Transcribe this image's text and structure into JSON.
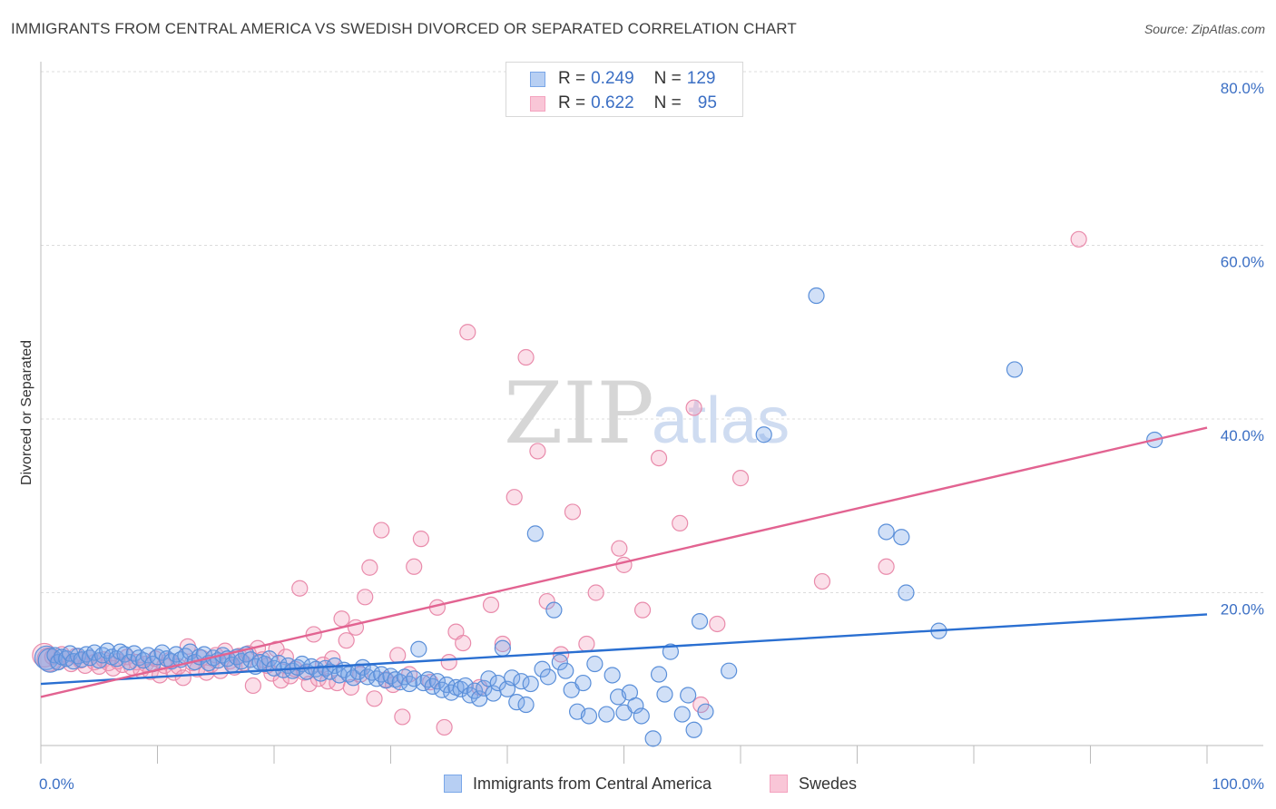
{
  "header": {
    "title": "IMMIGRANTS FROM CENTRAL AMERICA VS SWEDISH DIVORCED OR SEPARATED CORRELATION CHART",
    "source": "Source: ZipAtlas.com"
  },
  "watermark": {
    "zip": "ZIP",
    "atlas": "atlas"
  },
  "legend": {
    "rows": [
      {
        "r_label": "R = ",
        "r_value": "0.249",
        "n_label": "N = ",
        "n_value": "129"
      },
      {
        "r_label": "R = ",
        "r_value": "0.622",
        "n_label": "N = ",
        "n_value": "95"
      }
    ]
  },
  "chart_data": {
    "type": "scatter",
    "ylabel": "Divorced or Separated",
    "xlim": [
      0,
      100
    ],
    "ylim": [
      0,
      85
    ],
    "x_tick_labels": [
      "0.0%",
      "100.0%"
    ],
    "y_tick_labels": [
      "20.0%",
      "40.0%",
      "60.0%",
      "80.0%"
    ],
    "y_ticks": [
      20,
      40,
      60,
      80
    ],
    "grid": true,
    "legend_position": "top-center",
    "series": [
      {
        "name": "Immigrants from Central America",
        "color": "#7aa7e8",
        "stroke": "#5a8fd9",
        "trend_color": "#2a6fd1",
        "trend": {
          "x": [
            0,
            100
          ],
          "y": [
            9.5,
            17.5
          ]
        },
        "points": [
          [
            0.5,
            12.5
          ],
          [
            0.8,
            12.2
          ],
          [
            1.2,
            12.8
          ],
          [
            1.5,
            12.0
          ],
          [
            1.8,
            12.6
          ],
          [
            2.2,
            12.4
          ],
          [
            2.5,
            13.0
          ],
          [
            2.8,
            12.1
          ],
          [
            3.2,
            12.7
          ],
          [
            3.5,
            12.3
          ],
          [
            3.9,
            12.9
          ],
          [
            4.2,
            12.5
          ],
          [
            4.6,
            13.1
          ],
          [
            5.0,
            12.2
          ],
          [
            5.3,
            12.8
          ],
          [
            5.7,
            13.3
          ],
          [
            6.1,
            12.6
          ],
          [
            6.5,
            12.4
          ],
          [
            6.8,
            13.2
          ],
          [
            7.2,
            12.9
          ],
          [
            7.6,
            12.0
          ],
          [
            8.0,
            13.0
          ],
          [
            8.4,
            12.5
          ],
          [
            8.8,
            12.2
          ],
          [
            9.2,
            12.8
          ],
          [
            9.6,
            11.8
          ],
          [
            10.0,
            12.6
          ],
          [
            10.4,
            13.1
          ],
          [
            10.8,
            12.4
          ],
          [
            11.2,
            12.1
          ],
          [
            11.6,
            12.9
          ],
          [
            12.0,
            12.3
          ],
          [
            12.4,
            12.7
          ],
          [
            12.8,
            13.2
          ],
          [
            13.2,
            12.0
          ],
          [
            13.6,
            12.6
          ],
          [
            14.0,
            12.9
          ],
          [
            14.4,
            11.9
          ],
          [
            14.8,
            12.5
          ],
          [
            15.2,
            12.2
          ],
          [
            15.6,
            12.8
          ],
          [
            16.0,
            12.4
          ],
          [
            16.4,
            11.7
          ],
          [
            16.8,
            12.6
          ],
          [
            17.2,
            12.1
          ],
          [
            17.6,
            12.9
          ],
          [
            18.0,
            12.3
          ],
          [
            18.4,
            11.5
          ],
          [
            18.8,
            12.0
          ],
          [
            19.2,
            11.8
          ],
          [
            19.6,
            12.4
          ],
          [
            20.0,
            11.3
          ],
          [
            20.4,
            11.9
          ],
          [
            20.8,
            11.1
          ],
          [
            21.2,
            11.6
          ],
          [
            21.6,
            11.0
          ],
          [
            22.0,
            11.4
          ],
          [
            22.4,
            11.8
          ],
          [
            22.8,
            10.9
          ],
          [
            23.2,
            11.5
          ],
          [
            23.6,
            11.2
          ],
          [
            24.0,
            10.7
          ],
          [
            24.4,
            11.3
          ],
          [
            24.8,
            10.9
          ],
          [
            25.2,
            11.6
          ],
          [
            25.6,
            10.5
          ],
          [
            26.0,
            11.1
          ],
          [
            26.4,
            10.6
          ],
          [
            26.8,
            10.2
          ],
          [
            27.2,
            10.9
          ],
          [
            27.6,
            11.4
          ],
          [
            28.0,
            10.3
          ],
          [
            28.4,
            10.8
          ],
          [
            28.8,
            10.1
          ],
          [
            29.2,
            10.6
          ],
          [
            29.6,
            9.9
          ],
          [
            30.0,
            10.4
          ],
          [
            30.4,
            10.0
          ],
          [
            30.8,
            9.7
          ],
          [
            31.2,
            10.3
          ],
          [
            31.6,
            9.5
          ],
          [
            32.0,
            10.1
          ],
          [
            32.4,
            13.5
          ],
          [
            32.8,
            9.6
          ],
          [
            33.2,
            10.0
          ],
          [
            33.6,
            9.2
          ],
          [
            34.0,
            9.8
          ],
          [
            34.4,
            8.8
          ],
          [
            34.8,
            9.4
          ],
          [
            35.2,
            8.5
          ],
          [
            35.6,
            9.1
          ],
          [
            36.0,
            8.9
          ],
          [
            36.4,
            9.3
          ],
          [
            36.8,
            8.2
          ],
          [
            37.2,
            8.7
          ],
          [
            37.6,
            7.8
          ],
          [
            38.0,
            9.0
          ],
          [
            38.4,
            10.1
          ],
          [
            38.8,
            8.4
          ],
          [
            39.2,
            9.6
          ],
          [
            39.6,
            13.6
          ],
          [
            40.0,
            8.9
          ],
          [
            40.4,
            10.2
          ],
          [
            40.8,
            7.4
          ],
          [
            41.2,
            9.8
          ],
          [
            41.6,
            7.1
          ],
          [
            42.0,
            9.5
          ],
          [
            42.4,
            26.8
          ],
          [
            43.0,
            11.2
          ],
          [
            43.5,
            10.3
          ],
          [
            44.0,
            18.0
          ],
          [
            44.5,
            12.0
          ],
          [
            45.0,
            11.0
          ],
          [
            45.5,
            8.8
          ],
          [
            46.0,
            6.3
          ],
          [
            46.5,
            9.6
          ],
          [
            47.0,
            5.8
          ],
          [
            47.5,
            11.8
          ],
          [
            48.5,
            6.0
          ],
          [
            49.0,
            10.5
          ],
          [
            49.5,
            8.0
          ],
          [
            50.0,
            6.2
          ],
          [
            50.5,
            8.5
          ],
          [
            51.0,
            7.0
          ],
          [
            51.5,
            5.8
          ],
          [
            52.5,
            3.2
          ],
          [
            53.0,
            10.6
          ],
          [
            53.5,
            8.3
          ],
          [
            54.0,
            13.2
          ],
          [
            55.0,
            6.0
          ],
          [
            55.5,
            8.2
          ],
          [
            56.0,
            4.2
          ],
          [
            56.5,
            16.7
          ],
          [
            57.0,
            6.3
          ],
          [
            59.0,
            11.0
          ],
          [
            66.5,
            54.2
          ],
          [
            72.5,
            27.0
          ],
          [
            73.8,
            26.4
          ],
          [
            74.2,
            20.0
          ],
          [
            77.0,
            15.6
          ],
          [
            83.5,
            45.7
          ],
          [
            95.5,
            37.6
          ],
          [
            62.0,
            38.2
          ]
        ]
      },
      {
        "name": "Swedes",
        "color": "#f4a3bf",
        "stroke": "#e98bab",
        "trend_color": "#e26391",
        "trend": {
          "x": [
            0,
            100
          ],
          "y": [
            8.0,
            39.0
          ]
        },
        "points": [
          [
            0.3,
            12.8
          ],
          [
            0.7,
            12.3
          ],
          [
            1.0,
            12.6
          ],
          [
            1.4,
            12.0
          ],
          [
            1.8,
            12.9
          ],
          [
            2.2,
            12.4
          ],
          [
            2.6,
            11.8
          ],
          [
            3.0,
            12.7
          ],
          [
            3.4,
            12.2
          ],
          [
            3.8,
            11.6
          ],
          [
            4.2,
            12.5
          ],
          [
            4.6,
            12.0
          ],
          [
            5.0,
            11.5
          ],
          [
            5.4,
            12.3
          ],
          [
            5.8,
            11.9
          ],
          [
            6.2,
            11.3
          ],
          [
            6.6,
            12.1
          ],
          [
            7.0,
            11.7
          ],
          [
            7.4,
            12.6
          ],
          [
            7.8,
            11.4
          ],
          [
            8.2,
            12.0
          ],
          [
            8.6,
            11.1
          ],
          [
            9.0,
            11.8
          ],
          [
            9.4,
            10.9
          ],
          [
            9.8,
            12.4
          ],
          [
            10.2,
            10.5
          ],
          [
            10.6,
            11.6
          ],
          [
            11.0,
            12.2
          ],
          [
            11.4,
            10.8
          ],
          [
            11.8,
            11.5
          ],
          [
            12.2,
            10.2
          ],
          [
            12.6,
            13.8
          ],
          [
            13.0,
            11.9
          ],
          [
            13.4,
            11.2
          ],
          [
            13.8,
            12.5
          ],
          [
            14.2,
            10.8
          ],
          [
            14.6,
            11.7
          ],
          [
            15.0,
            12.8
          ],
          [
            15.4,
            11.0
          ],
          [
            15.8,
            13.3
          ],
          [
            16.2,
            12.1
          ],
          [
            16.6,
            11.4
          ],
          [
            17.0,
            12.7
          ],
          [
            17.4,
            11.9
          ],
          [
            17.8,
            13.0
          ],
          [
            18.2,
            9.3
          ],
          [
            18.6,
            13.6
          ],
          [
            19.0,
            12.3
          ],
          [
            19.4,
            11.6
          ],
          [
            19.8,
            10.7
          ],
          [
            20.2,
            13.5
          ],
          [
            20.6,
            9.9
          ],
          [
            21.0,
            12.6
          ],
          [
            21.4,
            10.4
          ],
          [
            21.8,
            11.2
          ],
          [
            22.2,
            20.5
          ],
          [
            22.6,
            10.8
          ],
          [
            23.0,
            9.5
          ],
          [
            23.4,
            15.2
          ],
          [
            23.8,
            10.1
          ],
          [
            24.2,
            11.7
          ],
          [
            24.6,
            9.8
          ],
          [
            25.0,
            12.4
          ],
          [
            25.4,
            9.6
          ],
          [
            25.8,
            17.0
          ],
          [
            26.2,
            14.5
          ],
          [
            26.6,
            9.1
          ],
          [
            27.0,
            16.0
          ],
          [
            27.4,
            10.6
          ],
          [
            27.8,
            19.5
          ],
          [
            28.2,
            22.9
          ],
          [
            28.6,
            7.8
          ],
          [
            29.2,
            27.2
          ],
          [
            29.6,
            10.0
          ],
          [
            30.2,
            9.4
          ],
          [
            30.6,
            12.8
          ],
          [
            31.0,
            5.7
          ],
          [
            31.6,
            10.6
          ],
          [
            32.0,
            23.0
          ],
          [
            32.6,
            26.2
          ],
          [
            33.4,
            9.7
          ],
          [
            34.0,
            18.3
          ],
          [
            34.6,
            4.5
          ],
          [
            35.0,
            12.0
          ],
          [
            35.6,
            15.5
          ],
          [
            36.2,
            14.2
          ],
          [
            36.6,
            50.0
          ],
          [
            37.6,
            9.1
          ],
          [
            38.6,
            18.6
          ],
          [
            39.6,
            14.1
          ],
          [
            40.6,
            31.0
          ],
          [
            41.6,
            47.1
          ],
          [
            42.6,
            36.3
          ],
          [
            43.4,
            19.0
          ],
          [
            44.6,
            12.9
          ],
          [
            45.6,
            29.3
          ],
          [
            46.8,
            14.1
          ],
          [
            47.6,
            20.0
          ],
          [
            49.6,
            25.1
          ],
          [
            50.0,
            23.2
          ],
          [
            51.6,
            18.0
          ],
          [
            53.0,
            35.5
          ],
          [
            54.8,
            28.0
          ],
          [
            56.0,
            41.3
          ],
          [
            56.6,
            7.1
          ],
          [
            58.0,
            16.4
          ],
          [
            60.0,
            33.2
          ],
          [
            67.0,
            21.3
          ],
          [
            72.5,
            23.0
          ],
          [
            89.0,
            60.7
          ]
        ]
      }
    ]
  }
}
